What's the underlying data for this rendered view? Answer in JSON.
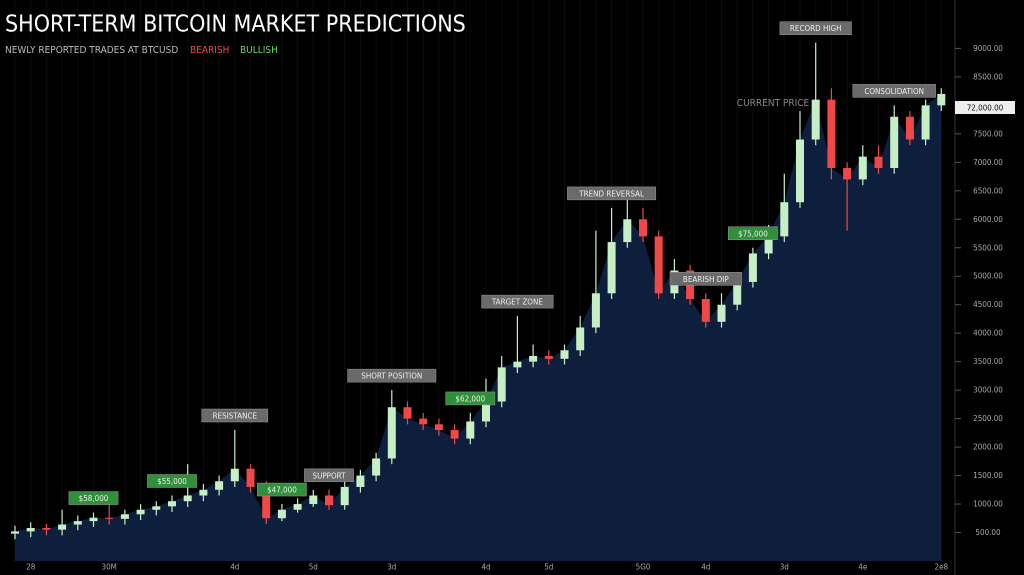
{
  "chart_data": {
    "type": "candlestick",
    "title": "SHORT-TERM BITCOIN MARKET PREDICTIONS",
    "subtitle": "NEWLY REPORTED TRADES AT BTCUSD",
    "series": [
      {
        "name": "BEARISH",
        "color": "#f04848"
      },
      {
        "name": "BULLISH",
        "color": "#c6efc6"
      }
    ],
    "categories": [
      null,
      "28",
      null,
      null,
      null,
      null,
      "30M",
      null,
      null,
      null,
      null,
      null,
      null,
      null,
      "4d",
      null,
      null,
      null,
      null,
      "5d",
      null,
      null,
      null,
      null,
      "3d",
      null,
      null,
      null,
      null,
      null,
      "4d",
      null,
      null,
      null,
      "5d",
      null,
      null,
      null,
      null,
      null,
      "5G0",
      null,
      null,
      null,
      "4d",
      null,
      null,
      null,
      null,
      "3d",
      null,
      null,
      null,
      null,
      "4e",
      null,
      null,
      null,
      null,
      "2e8"
    ],
    "open": [
      480,
      520,
      580,
      550,
      640,
      700,
      760,
      740,
      820,
      900,
      960,
      1050,
      1150,
      1250,
      1400,
      1620,
      1300,
      750,
      900,
      1000,
      1150,
      980,
      1300,
      1500,
      1800,
      2700,
      2500,
      2400,
      2300,
      2150,
      2450,
      2800,
      3400,
      3500,
      3600,
      3550,
      3700,
      4100,
      4700,
      5600,
      6000,
      5700,
      4700,
      5100,
      4600,
      4200,
      4500,
      4900,
      5400,
      5700,
      6300,
      7400,
      8100,
      6900,
      6700,
      7100,
      6900,
      7800,
      7400,
      8000
    ],
    "high": [
      620,
      680,
      650,
      900,
      800,
      850,
      1200,
      900,
      1000,
      1050,
      1150,
      1700,
      1350,
      1500,
      2300,
      1700,
      1400,
      1000,
      1100,
      1250,
      1250,
      1400,
      1600,
      1900,
      3000,
      2800,
      2600,
      2500,
      2400,
      2600,
      3200,
      3600,
      4300,
      3800,
      3700,
      3800,
      4300,
      5800,
      6200,
      6500,
      6200,
      5800,
      5300,
      5200,
      4700,
      4700,
      5000,
      5500,
      5900,
      6800,
      7900,
      9100,
      8300,
      7000,
      7300,
      7300,
      8000,
      7900,
      8100,
      8300
    ],
    "low": [
      380,
      420,
      450,
      450,
      540,
      600,
      640,
      640,
      720,
      800,
      860,
      950,
      1050,
      1150,
      1300,
      1200,
      650,
      700,
      850,
      950,
      900,
      900,
      1200,
      1400,
      1700,
      2400,
      2300,
      2200,
      2050,
      2050,
      2350,
      2700,
      3300,
      3400,
      3450,
      3450,
      3600,
      4000,
      4600,
      5500,
      5600,
      4600,
      4600,
      4500,
      4100,
      4100,
      4400,
      4800,
      5300,
      5600,
      6200,
      7300,
      6700,
      5800,
      6600,
      6800,
      6800,
      7300,
      7300,
      7900
    ],
    "close": [
      520,
      580,
      550,
      640,
      700,
      760,
      740,
      820,
      900,
      960,
      1050,
      1150,
      1250,
      1400,
      1620,
      1300,
      750,
      900,
      1000,
      1150,
      980,
      1300,
      1500,
      1800,
      2700,
      2500,
      2400,
      2300,
      2150,
      2450,
      2800,
      3400,
      3500,
      3600,
      3550,
      3700,
      4100,
      4700,
      5600,
      6000,
      5700,
      4700,
      5100,
      4600,
      4200,
      4500,
      4900,
      5400,
      5700,
      6300,
      7400,
      8100,
      6900,
      6700,
      7100,
      6900,
      7800,
      7400,
      8000,
      8200
    ],
    "annotations": [
      {
        "text": "$58,000",
        "index": 5,
        "color": "#2f8f3a"
      },
      {
        "text": "$55,000",
        "index": 10,
        "color": "#2f8f3a"
      },
      {
        "text": "RESISTANCE",
        "index": 14,
        "color": "#6a6a6a"
      },
      {
        "text": "$47,000",
        "index": 17,
        "color": "#2f8f3a"
      },
      {
        "text": "SUPPORT",
        "index": 20,
        "color": "#6a6a6a"
      },
      {
        "text": "SHORT POSITION",
        "index": 24,
        "color": "#6a6a6a"
      },
      {
        "text": "$62,000",
        "index": 29,
        "color": "#2f8f3a"
      },
      {
        "text": "TARGET ZONE",
        "index": 32,
        "color": "#6a6a6a"
      },
      {
        "text": "TREND REVERSAL",
        "index": 38,
        "color": "#6a6a6a"
      },
      {
        "text": "BEARISH DIP",
        "index": 44,
        "color": "#6a6a6a"
      },
      {
        "text": "$75,000",
        "index": 47,
        "color": "#2f8f3a"
      },
      {
        "text": "RECORD HIGH",
        "index": 51,
        "color": "#6a6a6a"
      },
      {
        "text": "CONSOLIDATION",
        "index": 56,
        "color": "#6a6a6a"
      }
    ],
    "price_tag": "72,000.00",
    "price_tag_caption": "CURRENT PRICE",
    "ylim": [
      0,
      9850
    ],
    "yticks": [
      {
        "value": 500,
        "label": "500.00"
      },
      {
        "value": 1000,
        "label": "1000.00"
      },
      {
        "value": 1500,
        "label": "1500.00"
      },
      {
        "value": 2000,
        "label": "2000.00"
      },
      {
        "value": 2500,
        "label": "2500.00"
      },
      {
        "value": 3000,
        "label": "3000.00"
      },
      {
        "value": 3500,
        "label": "3500.00"
      },
      {
        "value": 4000,
        "label": "4000.00"
      },
      {
        "value": 4500,
        "label": "4500.00"
      },
      {
        "value": 5000,
        "label": "5000.00"
      },
      {
        "value": 5500,
        "label": "5500.00"
      },
      {
        "value": 6000,
        "label": "6000.00"
      },
      {
        "value": 6500,
        "label": "6500.00"
      },
      {
        "value": 7000,
        "label": "7000.00"
      },
      {
        "value": 7500,
        "label": "7500.00"
      },
      {
        "value": 8000,
        "label": "8000.00"
      },
      {
        "value": 8500,
        "label": "8500.00"
      },
      {
        "value": 9000,
        "label": "9000.00"
      }
    ],
    "area_color": "#0e1f3d"
  }
}
